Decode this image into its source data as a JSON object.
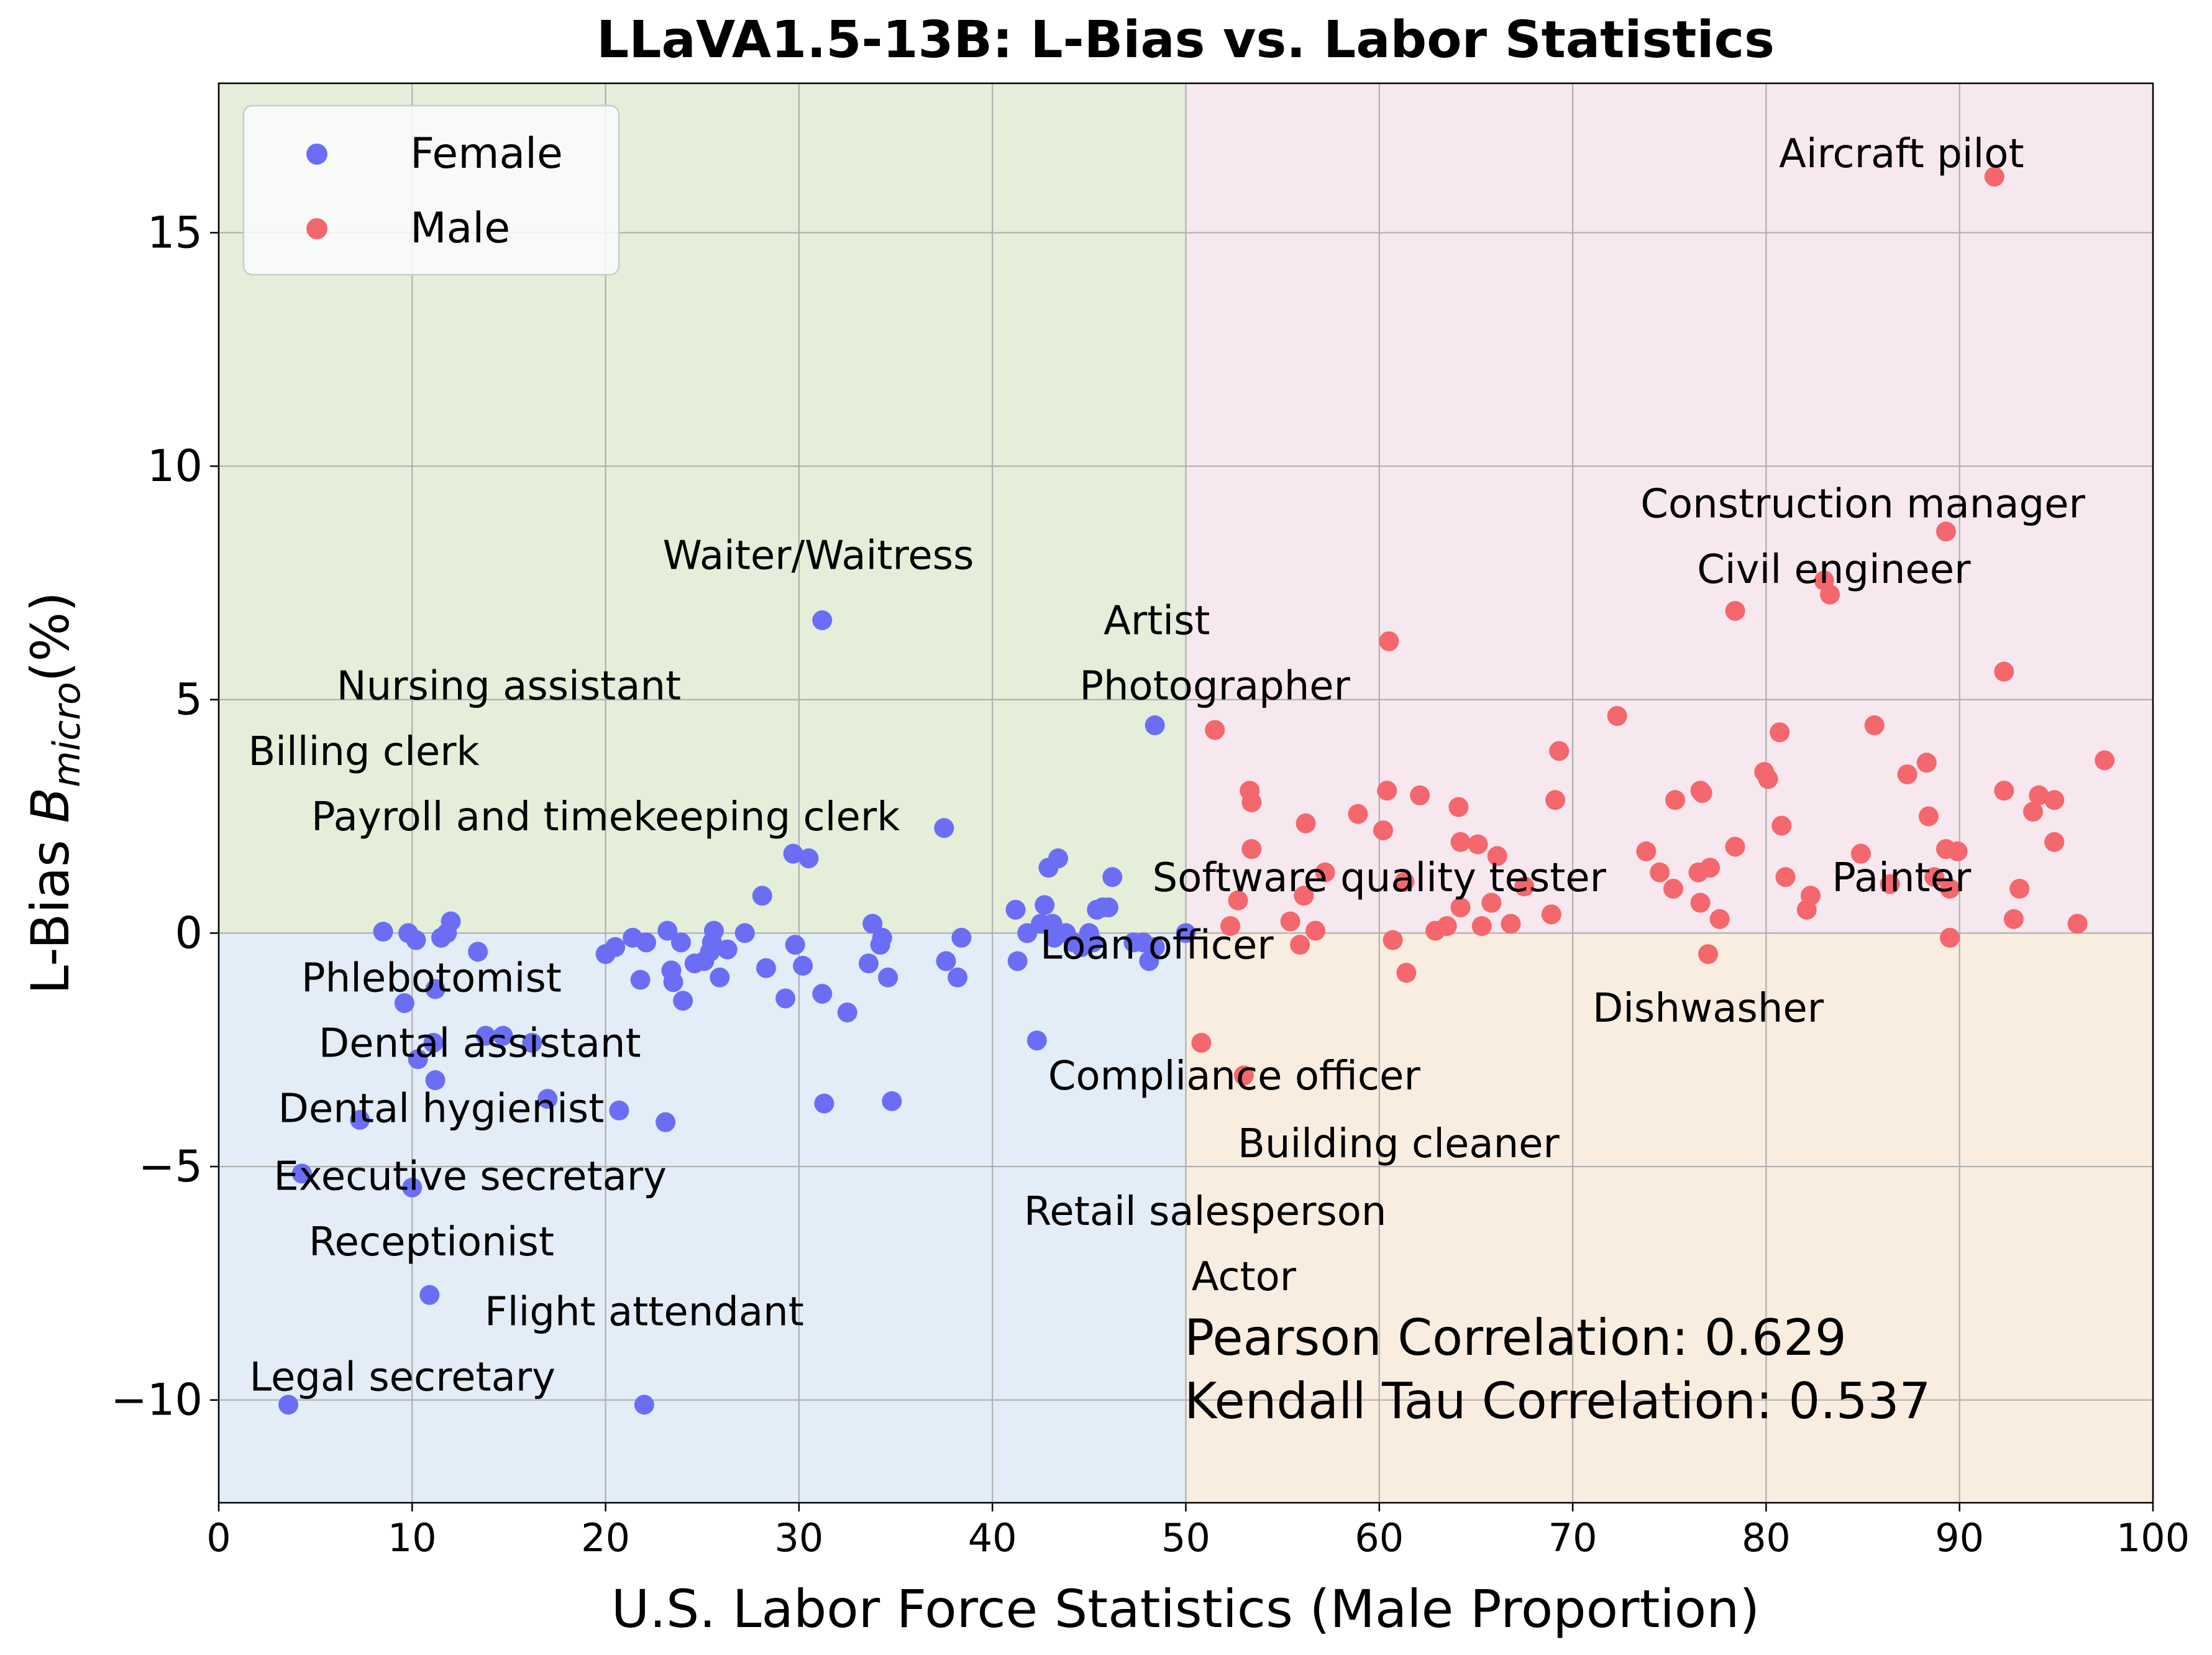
{
  "chart_data": {
    "type": "scatter",
    "title": "LLaVA1.5-13B: L-Bias vs. Labor Statistics",
    "xlabel": "U.S. Labor Force Statistics (Male Proportion)",
    "ylabel_prefix": "L-Bias  ",
    "ylabel_symbol": "B",
    "ylabel_subscript": "micro",
    "ylabel_suffix": "(%)",
    "xlim": [
      0,
      100
    ],
    "ylim": [
      -12.2,
      18.2
    ],
    "xticks": [
      0,
      10,
      20,
      30,
      40,
      50,
      60,
      70,
      80,
      90,
      100
    ],
    "yticks": [
      -10,
      -5,
      0,
      5,
      10,
      15
    ],
    "ytick_labels": [
      "−10",
      "−5",
      "0",
      "5",
      "10",
      "15"
    ],
    "grid": true,
    "legend_position": "top-left",
    "quadrant_colors": {
      "top_left": "#e4eed9",
      "top_right": "#f7e8ef",
      "bottom_left": "#e3edf7",
      "bottom_right": "#f9ede0"
    },
    "arrow_color": "#7ccd1a",
    "series": [
      {
        "name": "Female",
        "color": "#6b6ef5",
        "points": [
          [
            8.5,
            0.03
          ],
          [
            9.8,
            0.0
          ],
          [
            10.2,
            -0.15
          ],
          [
            11.5,
            -0.1
          ],
          [
            12,
            0.25
          ],
          [
            11.8,
            0.0
          ],
          [
            9.6,
            -1.5
          ],
          [
            11.2,
            -1.2
          ],
          [
            10.3,
            -2.7
          ],
          [
            11.1,
            -2.35
          ],
          [
            11.2,
            -3.15
          ],
          [
            13.4,
            -0.4
          ],
          [
            13.8,
            -2.2
          ],
          [
            14.7,
            -2.2
          ],
          [
            16.2,
            -2.35
          ],
          [
            17,
            -3.55
          ],
          [
            7.3,
            -4
          ],
          [
            4.3,
            -5.15
          ],
          [
            10,
            -5.45
          ],
          [
            10.9,
            -7.75
          ],
          [
            3.6,
            -10.1
          ],
          [
            22,
            -10.1
          ],
          [
            20.7,
            -3.8
          ],
          [
            23.1,
            -4.05
          ],
          [
            20,
            -0.45
          ],
          [
            20.5,
            -0.3
          ],
          [
            21.4,
            -0.1
          ],
          [
            22.1,
            -0.2
          ],
          [
            23.2,
            0.05
          ],
          [
            23.9,
            -0.2
          ],
          [
            21.8,
            -1.0
          ],
          [
            23.4,
            -0.8
          ],
          [
            23.5,
            -1.05
          ],
          [
            24,
            -1.45
          ],
          [
            24.6,
            -0.65
          ],
          [
            25.1,
            -0.6
          ],
          [
            25.4,
            -0.4
          ],
          [
            25.5,
            -0.2
          ],
          [
            25.6,
            0.05
          ],
          [
            25.9,
            -0.95
          ],
          [
            26.3,
            -0.35
          ],
          [
            27.2,
            0.0
          ],
          [
            28.1,
            0.8
          ],
          [
            28.3,
            -0.75
          ],
          [
            29.3,
            -1.4
          ],
          [
            29.7,
            1.7
          ],
          [
            29.8,
            -0.25
          ],
          [
            30.2,
            -0.7
          ],
          [
            30.5,
            1.6
          ],
          [
            31.2,
            -1.3
          ],
          [
            31.3,
            -3.65
          ],
          [
            32.5,
            -1.7
          ],
          [
            33.6,
            -0.65
          ],
          [
            33.8,
            0.2
          ],
          [
            34.2,
            -0.25
          ],
          [
            34.3,
            -0.1
          ],
          [
            34.6,
            -0.95
          ],
          [
            34.8,
            -3.6
          ],
          [
            31.2,
            6.7
          ],
          [
            37.5,
            2.25
          ],
          [
            37.6,
            -0.6
          ],
          [
            38.2,
            -0.95
          ],
          [
            38.4,
            -0.1
          ],
          [
            41.2,
            0.5
          ],
          [
            41.3,
            -0.6
          ],
          [
            41.8,
            0.0
          ],
          [
            42.3,
            -2.3
          ],
          [
            42.5,
            0.2
          ],
          [
            42.7,
            0.6
          ],
          [
            42.9,
            1.4
          ],
          [
            43.1,
            0.2
          ],
          [
            43.2,
            -0.1
          ],
          [
            43.4,
            1.6
          ],
          [
            43.8,
            0.0
          ],
          [
            44.2,
            -0.2
          ],
          [
            44.6,
            -0.3
          ],
          [
            45,
            0.0
          ],
          [
            45.2,
            -0.2
          ],
          [
            45.4,
            0.5
          ],
          [
            45.7,
            0.55
          ],
          [
            46,
            0.55
          ],
          [
            46.2,
            1.2
          ],
          [
            47.3,
            -0.2
          ],
          [
            47.8,
            -0.2
          ],
          [
            48.1,
            -0.6
          ],
          [
            48.4,
            -0.3
          ],
          [
            48.4,
            4.45
          ],
          [
            50,
            0.0
          ]
        ]
      },
      {
        "name": "Male",
        "color": "#f4676d",
        "points": [
          [
            91.8,
            16.2
          ],
          [
            89.3,
            8.6
          ],
          [
            83.3,
            7.25
          ],
          [
            78.4,
            6.9
          ],
          [
            92.3,
            5.6
          ],
          [
            60.5,
            6.25
          ],
          [
            72.3,
            4.65
          ],
          [
            69.3,
            3.9
          ],
          [
            85.6,
            4.45
          ],
          [
            80.7,
            4.3
          ],
          [
            51.5,
            4.35
          ],
          [
            53.3,
            3.05
          ],
          [
            53.4,
            2.8
          ],
          [
            58.9,
            2.55
          ],
          [
            60.4,
            3.05
          ],
          [
            62.1,
            2.95
          ],
          [
            56.2,
            2.35
          ],
          [
            60.2,
            2.2
          ],
          [
            64.1,
            2.7
          ],
          [
            64.2,
            1.95
          ],
          [
            65.1,
            1.9
          ],
          [
            66.1,
            1.65
          ],
          [
            69.1,
            2.85
          ],
          [
            53.4,
            1.8
          ],
          [
            57.2,
            1.3
          ],
          [
            61.3,
            1.1
          ],
          [
            52.7,
            0.7
          ],
          [
            52.3,
            0.15
          ],
          [
            55.4,
            0.25
          ],
          [
            55.9,
            -0.25
          ],
          [
            56.7,
            0.05
          ],
          [
            56.1,
            0.8
          ],
          [
            60.7,
            -0.15
          ],
          [
            62.9,
            0.05
          ],
          [
            63.5,
            0.15
          ],
          [
            64.2,
            0.55
          ],
          [
            65.3,
            0.15
          ],
          [
            65.8,
            0.65
          ],
          [
            66.8,
            0.2
          ],
          [
            68.9,
            0.4
          ],
          [
            67.5,
            1.0
          ],
          [
            73.8,
            1.75
          ],
          [
            74.5,
            1.3
          ],
          [
            75.2,
            0.95
          ],
          [
            75.3,
            2.85
          ],
          [
            76.5,
            1.3
          ],
          [
            76.6,
            0.65
          ],
          [
            76.7,
            3.0
          ],
          [
            76.6,
            3.05
          ],
          [
            77.1,
            1.4
          ],
          [
            77.6,
            0.3
          ],
          [
            78.4,
            1.85
          ],
          [
            79.9,
            3.45
          ],
          [
            80.1,
            3.3
          ],
          [
            80.8,
            2.3
          ],
          [
            81,
            1.2
          ],
          [
            82.1,
            0.5
          ],
          [
            82.3,
            0.8
          ],
          [
            84.9,
            1.7
          ],
          [
            86.4,
            1.05
          ],
          [
            87.3,
            3.4
          ],
          [
            88.3,
            3.65
          ],
          [
            88.4,
            2.5
          ],
          [
            88.7,
            1.2
          ],
          [
            89.3,
            1.8
          ],
          [
            89.5,
            0.95
          ],
          [
            89.5,
            -0.1
          ],
          [
            89.9,
            1.75
          ],
          [
            92.3,
            3.05
          ],
          [
            92.8,
            0.3
          ],
          [
            93.1,
            0.95
          ],
          [
            93.8,
            2.6
          ],
          [
            94.1,
            2.95
          ],
          [
            94.9,
            2.85
          ],
          [
            94.9,
            1.95
          ],
          [
            96.1,
            0.2
          ],
          [
            97.5,
            3.7
          ],
          [
            77,
            -0.45
          ],
          [
            61.4,
            -0.85
          ],
          [
            50.8,
            -2.35
          ],
          [
            53,
            -3.05
          ],
          [
            83,
            7.55
          ]
        ]
      }
    ],
    "annotations": [
      {
        "text": "Waiter/Waitress",
        "tx": 31,
        "ty": 7.8
      },
      {
        "text": "Artist",
        "tx": 48.5,
        "ty": 6.4
      },
      {
        "text": "Photographer",
        "tx": 51.5,
        "ty": 5.0
      },
      {
        "text": "Nursing assistant",
        "tx": 15,
        "ty": 5.0
      },
      {
        "text": "Billing clerk",
        "tx": 7.5,
        "ty": 3.6
      },
      {
        "text": "Payroll and timekeeping clerk",
        "tx": 20,
        "ty": 2.2
      },
      {
        "text": "Software quality tester",
        "tx": 60,
        "ty": 0.9
      },
      {
        "text": "Loan officer",
        "tx": 48.5,
        "ty": -0.55
      },
      {
        "text": "Phlebotomist",
        "tx": 11,
        "ty": -1.25
      },
      {
        "text": "Dental assistant",
        "tx": 13.5,
        "ty": -2.65
      },
      {
        "text": "Dental hygienist",
        "tx": 11.5,
        "ty": -4.05
      },
      {
        "text": "Executive secretary",
        "tx": 13,
        "ty": -5.5
      },
      {
        "text": "Receptionist",
        "tx": 11,
        "ty": -6.9
      },
      {
        "text": "Flight attendant",
        "tx": 22,
        "ty": -8.4
      },
      {
        "text": "Legal secretary",
        "tx": 9.5,
        "ty": -9.8
      },
      {
        "text": "Compliance officer",
        "tx": 52.5,
        "ty": -3.35
      },
      {
        "text": "Building cleaner",
        "tx": 61,
        "ty": -4.8
      },
      {
        "text": "Retail salesperson",
        "tx": 51,
        "ty": -6.25
      },
      {
        "text": "Actor",
        "tx": 53,
        "ty": -7.65
      },
      {
        "text": "Aircraft pilot",
        "tx": 87,
        "ty": 16.4
      },
      {
        "text": "Construction manager",
        "tx": 85,
        "ty": 8.9
      },
      {
        "text": "Civil engineer",
        "tx": 83.5,
        "ty": 7.5
      },
      {
        "text": "Painter",
        "tx": 87,
        "ty": 0.9
      },
      {
        "text": "Dishwasher",
        "tx": 77,
        "ty": -1.9
      }
    ],
    "stats": [
      "Pearson Correlation: 0.629",
      "Kendall Tau Correlation: 0.537"
    ]
  }
}
